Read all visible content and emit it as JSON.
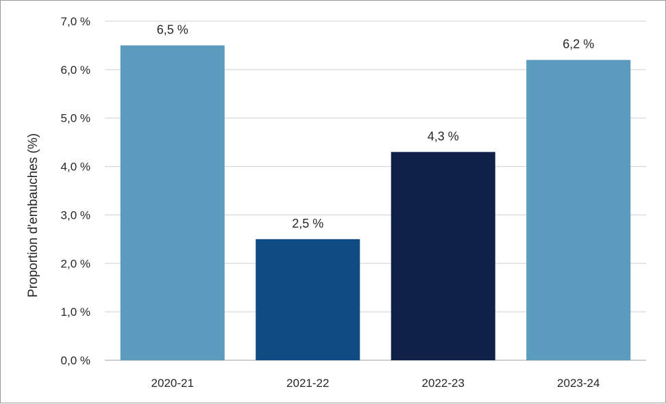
{
  "chart_data": {
    "type": "bar",
    "categories": [
      "2020-21",
      "2021-22",
      "2022-23",
      "2023-24"
    ],
    "values": [
      6.5,
      2.5,
      4.3,
      6.2
    ],
    "data_labels": [
      "6,5 %",
      "2,5 %",
      "4,3 %",
      "6,2 %"
    ],
    "bar_colors": [
      "#5b9bbe",
      "#0f4c81",
      "#0f2147",
      "#5b9bbe"
    ],
    "title": "",
    "xlabel": "",
    "ylabel": "Proportion d'embauches (%)",
    "ylim": [
      0,
      7
    ],
    "yticks": [
      0,
      1,
      2,
      3,
      4,
      5,
      6,
      7
    ],
    "ytick_labels": [
      "0,0 %",
      "1,0 %",
      "2,0 %",
      "3,0 %",
      "4,0 %",
      "5,0 %",
      "6,0 %",
      "7,0 %"
    ],
    "grid": true,
    "legend": "none",
    "gridline_color": "#d9d9d9",
    "axis_color": "#bfbfbf"
  }
}
